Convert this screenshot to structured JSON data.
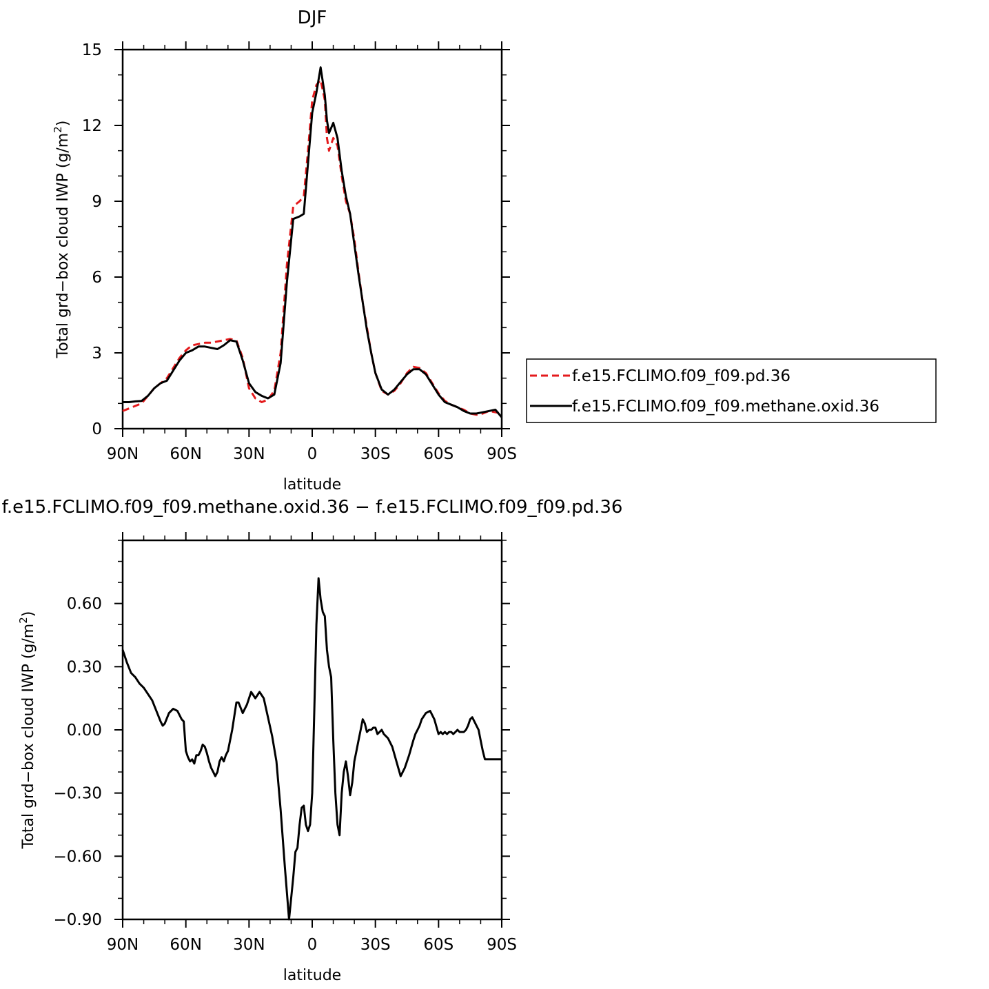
{
  "top_title": "DJF",
  "bottom_title": "f.e15.FCLIMO.f09_f09.methane.oxid.36 − f.e15.FCLIMO.f09_f09.pd.36",
  "xlabel": "latitude",
  "ylabel_text": "Total grd−box cloud IWP (g/m",
  "ylabel_sup": "2",
  "ylabel_close": ")",
  "x_tick_labels": [
    "90N",
    "60N",
    "30N",
    "0",
    "30S",
    "60S",
    "90S"
  ],
  "legend": {
    "labels": [
      "f.e15.FCLIMO.f09_f09.pd.36",
      "f.e15.FCLIMO.f09_f09.methane.oxid.36"
    ]
  },
  "colors": {
    "pd": "#e41a1c",
    "methane": "#000000"
  },
  "chart_data": [
    {
      "type": "line",
      "title": "DJF",
      "xlabel": "latitude",
      "ylabel": "Total grd−box cloud IWP (g/m²)",
      "xlim": [
        90,
        -90
      ],
      "ylim": [
        0,
        15
      ],
      "y_ticks": [
        0,
        3,
        6,
        9,
        12,
        15
      ],
      "y_tick_labels": [
        "0",
        "3",
        "6",
        "9",
        "12",
        "15"
      ],
      "x_ticks": [
        90,
        60,
        30,
        0,
        -30,
        -60,
        -90
      ],
      "x_tick_labels": [
        "90N",
        "60N",
        "30N",
        "0",
        "30S",
        "60S",
        "90S"
      ],
      "legend_position": "right",
      "series": [
        {
          "name": "f.e15.FCLIMO.f09_f09.pd.36",
          "style": "dashed",
          "color": "#e41a1c",
          "x": [
            90,
            87,
            84,
            81,
            78,
            75,
            72,
            69,
            66,
            63,
            60,
            57,
            54,
            51,
            48,
            45,
            42,
            39,
            36,
            33,
            30,
            27,
            24,
            21,
            18,
            15,
            12,
            9,
            6,
            4,
            2,
            0,
            -2,
            -4,
            -6,
            -7,
            -8,
            -10,
            -12,
            -14,
            -16,
            -18,
            -20,
            -22,
            -24,
            -26,
            -28,
            -30,
            -33,
            -36,
            -39,
            -42,
            -45,
            -48,
            -51,
            -54,
            -57,
            -60,
            -63,
            -66,
            -69,
            -72,
            -75,
            -78,
            -81,
            -84,
            -87,
            -90
          ],
          "y": [
            0.7,
            0.8,
            0.9,
            1.0,
            1.3,
            1.6,
            1.8,
            2.0,
            2.4,
            2.8,
            3.1,
            3.3,
            3.35,
            3.4,
            3.4,
            3.45,
            3.5,
            3.55,
            3.5,
            2.8,
            1.6,
            1.2,
            1.05,
            1.15,
            1.5,
            3.0,
            6.5,
            8.8,
            9.0,
            9.2,
            11.0,
            13.0,
            13.6,
            13.8,
            13.0,
            11.5,
            11.0,
            11.5,
            11.2,
            10.0,
            9.0,
            8.5,
            7.5,
            6.2,
            5.0,
            4.0,
            3.0,
            2.2,
            1.5,
            1.35,
            1.5,
            1.8,
            2.2,
            2.45,
            2.4,
            2.2,
            1.8,
            1.4,
            1.1,
            0.95,
            0.85,
            0.75,
            0.6,
            0.55,
            0.6,
            0.7,
            0.65,
            0.6
          ]
        },
        {
          "name": "f.e15.FCLIMO.f09_f09.methane.oxid.36",
          "style": "solid",
          "color": "#000000",
          "x": [
            90,
            87,
            84,
            81,
            78,
            75,
            72,
            69,
            66,
            63,
            60,
            57,
            54,
            51,
            48,
            45,
            42,
            39,
            36,
            33,
            30,
            27,
            24,
            21,
            18,
            15,
            12,
            9,
            6,
            4,
            2,
            0,
            -2,
            -4,
            -6,
            -7,
            -8,
            -10,
            -12,
            -14,
            -16,
            -18,
            -20,
            -22,
            -24,
            -26,
            -28,
            -30,
            -33,
            -36,
            -39,
            -42,
            -45,
            -48,
            -51,
            -54,
            -57,
            -60,
            -63,
            -66,
            -69,
            -72,
            -75,
            -78,
            -81,
            -84,
            -87,
            -90
          ],
          "y": [
            1.05,
            1.05,
            1.08,
            1.1,
            1.3,
            1.6,
            1.8,
            1.9,
            2.3,
            2.7,
            3.0,
            3.1,
            3.25,
            3.25,
            3.2,
            3.15,
            3.3,
            3.5,
            3.45,
            2.7,
            1.8,
            1.45,
            1.3,
            1.2,
            1.35,
            2.6,
            5.8,
            8.3,
            8.4,
            8.5,
            10.5,
            12.5,
            13.3,
            14.3,
            13.2,
            12.2,
            11.7,
            12.1,
            11.5,
            10.2,
            9.2,
            8.5,
            7.3,
            6.1,
            5.0,
            3.9,
            3.0,
            2.2,
            1.55,
            1.35,
            1.55,
            1.85,
            2.15,
            2.35,
            2.35,
            2.15,
            1.75,
            1.35,
            1.05,
            0.95,
            0.85,
            0.7,
            0.6,
            0.6,
            0.65,
            0.7,
            0.75,
            0.45
          ]
        }
      ]
    },
    {
      "type": "line",
      "title": "f.e15.FCLIMO.f09_f09.methane.oxid.36 − f.e15.FCLIMO.f09_f09.pd.36",
      "xlabel": "latitude",
      "ylabel": "Total grd−box cloud IWP (g/m²)",
      "xlim": [
        90,
        -90
      ],
      "ylim": [
        -0.9,
        0.9
      ],
      "y_ticks": [
        -0.9,
        -0.6,
        -0.3,
        0.0,
        0.3,
        0.6
      ],
      "y_tick_labels": [
        "−0.90",
        "−0.60",
        "−0.30",
        "0.00",
        "0.30",
        "0.60"
      ],
      "x_ticks": [
        90,
        60,
        30,
        0,
        -30,
        -60,
        -90
      ],
      "x_tick_labels": [
        "90N",
        "60N",
        "30N",
        "0",
        "30S",
        "60S",
        "90S"
      ],
      "series": [
        {
          "name": "",
          "style": "solid",
          "color": "#000000",
          "x": [
            90,
            88,
            86,
            84,
            82,
            80,
            78,
            76,
            74,
            72,
            71,
            70,
            68,
            66,
            64,
            62,
            61,
            60,
            59,
            58,
            57,
            56,
            55,
            54,
            53,
            52,
            51,
            50,
            49,
            48,
            47,
            46,
            45,
            44,
            43,
            42,
            41,
            40,
            38,
            36,
            35,
            33,
            31,
            29,
            27,
            25,
            23,
            21,
            19,
            17,
            15,
            13,
            11,
            9,
            8,
            7,
            6,
            5,
            4,
            3,
            2,
            1,
            0,
            -1,
            -2,
            -3,
            -4,
            -5,
            -6,
            -7,
            -8,
            -9,
            -10,
            -11,
            -12,
            -13,
            -14,
            -15,
            -16,
            -17,
            -18,
            -19,
            -20,
            -21,
            -22,
            -23,
            -24,
            -25,
            -26,
            -27,
            -28,
            -29,
            -30,
            -31,
            -32,
            -33,
            -34,
            -36,
            -38,
            -40,
            -42,
            -44,
            -46,
            -48,
            -49,
            -50,
            -51,
            -52,
            -54,
            -56,
            -58,
            -60,
            -61,
            -62,
            -63,
            -64,
            -65,
            -66,
            -67,
            -68,
            -69,
            -70,
            -71,
            -72,
            -73,
            -74,
            -75,
            -76,
            -77,
            -78,
            -79,
            -80,
            -81,
            -82,
            -83,
            -84,
            -85,
            -86,
            -87,
            -88,
            -89,
            -90
          ],
          "y": [
            0.38,
            0.32,
            0.27,
            0.25,
            0.22,
            0.2,
            0.17,
            0.14,
            0.09,
            0.04,
            0.02,
            0.03,
            0.08,
            0.1,
            0.09,
            0.05,
            0.04,
            -0.1,
            -0.13,
            -0.15,
            -0.14,
            -0.16,
            -0.12,
            -0.12,
            -0.1,
            -0.07,
            -0.08,
            -0.11,
            -0.15,
            -0.18,
            -0.2,
            -0.22,
            -0.2,
            -0.15,
            -0.13,
            -0.15,
            -0.12,
            -0.1,
            0.0,
            0.13,
            0.13,
            0.08,
            0.12,
            0.18,
            0.15,
            0.18,
            0.15,
            0.06,
            -0.03,
            -0.15,
            -0.38,
            -0.65,
            -0.9,
            -0.7,
            -0.58,
            -0.56,
            -0.45,
            -0.37,
            -0.36,
            -0.45,
            -0.48,
            -0.45,
            -0.3,
            0.1,
            0.5,
            0.72,
            0.62,
            0.56,
            0.54,
            0.38,
            0.3,
            0.25,
            -0.05,
            -0.3,
            -0.45,
            -0.5,
            -0.3,
            -0.2,
            -0.15,
            -0.22,
            -0.31,
            -0.25,
            -0.15,
            -0.1,
            -0.05,
            0.0,
            0.05,
            0.03,
            -0.01,
            0.0,
            0.0,
            0.01,
            0.01,
            -0.02,
            -0.01,
            0.0,
            -0.02,
            -0.04,
            -0.08,
            -0.15,
            -0.22,
            -0.18,
            -0.12,
            -0.05,
            -0.02,
            0.0,
            0.02,
            0.05,
            0.08,
            0.09,
            0.05,
            -0.02,
            -0.01,
            -0.02,
            -0.01,
            -0.02,
            -0.01,
            -0.01,
            -0.02,
            -0.01,
            0.0,
            -0.01,
            -0.01,
            -0.01,
            0.0,
            0.02,
            0.05,
            0.06,
            0.04,
            0.02,
            0.0,
            -0.05,
            -0.1,
            -0.14,
            -0.14,
            -0.14,
            -0.14,
            -0.14,
            -0.14,
            -0.14,
            -0.14,
            -0.14
          ]
        }
      ]
    }
  ]
}
